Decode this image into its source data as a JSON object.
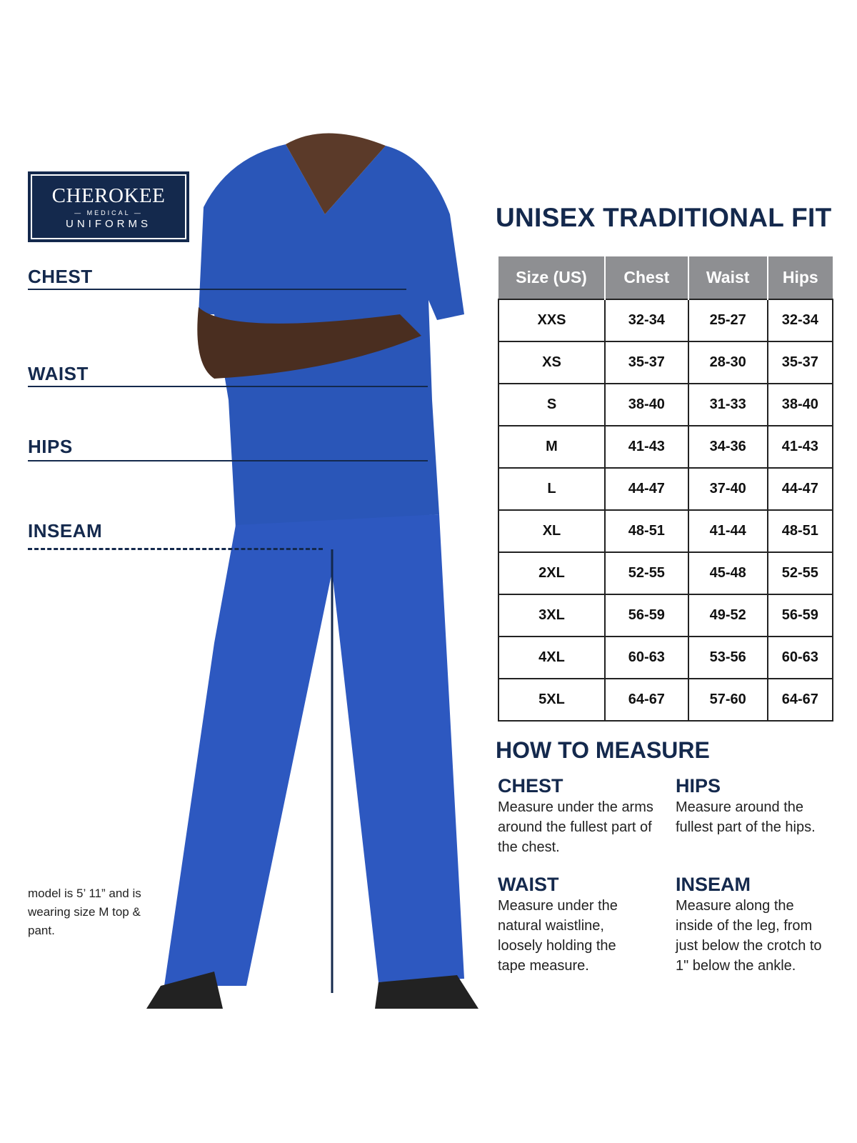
{
  "logo": {
    "brand": "CHEROKEE",
    "sub": "MEDICAL",
    "line2": "UNIFORMS"
  },
  "measure_labels": {
    "chest": "CHEST",
    "waist": "WAIST",
    "hips": "HIPS",
    "inseam": "INSEAM"
  },
  "caption": "model is 5’ 11” and is wearing size M top & pant.",
  "colors": {
    "navy": "#14294d",
    "header_gray": "#8e8f92",
    "scrub_blue": "#2a56b8"
  },
  "table": {
    "title": "UNISEX TRADITIONAL FIT",
    "headers": [
      "Size (US)",
      "Chest",
      "Waist",
      "Hips"
    ],
    "rows": [
      [
        "XXS",
        "32-34",
        "25-27",
        "32-34"
      ],
      [
        "XS",
        "35-37",
        "28-30",
        "35-37"
      ],
      [
        "S",
        "38-40",
        "31-33",
        "38-40"
      ],
      [
        "M",
        "41-43",
        "34-36",
        "41-43"
      ],
      [
        "L",
        "44-47",
        "37-40",
        "44-47"
      ],
      [
        "XL",
        "48-51",
        "41-44",
        "48-51"
      ],
      [
        "2XL",
        "52-55",
        "45-48",
        "52-55"
      ],
      [
        "3XL",
        "56-59",
        "49-52",
        "56-59"
      ],
      [
        "4XL",
        "60-63",
        "53-56",
        "60-63"
      ],
      [
        "5XL",
        "64-67",
        "57-60",
        "64-67"
      ]
    ]
  },
  "how_to": {
    "title": "HOW TO MEASURE",
    "items": [
      {
        "heading": "CHEST",
        "text": "Measure under the arms around the fullest part of the chest."
      },
      {
        "heading": "HIPS",
        "text": "Measure around the fullest part of the hips."
      },
      {
        "heading": "WAIST",
        "text": "Measure under the natural waistline, loosely holding the tape measure."
      },
      {
        "heading": "INSEAM",
        "text": "Measure along the inside of the leg, from just below the crotch to 1\" below the ankle."
      }
    ]
  }
}
